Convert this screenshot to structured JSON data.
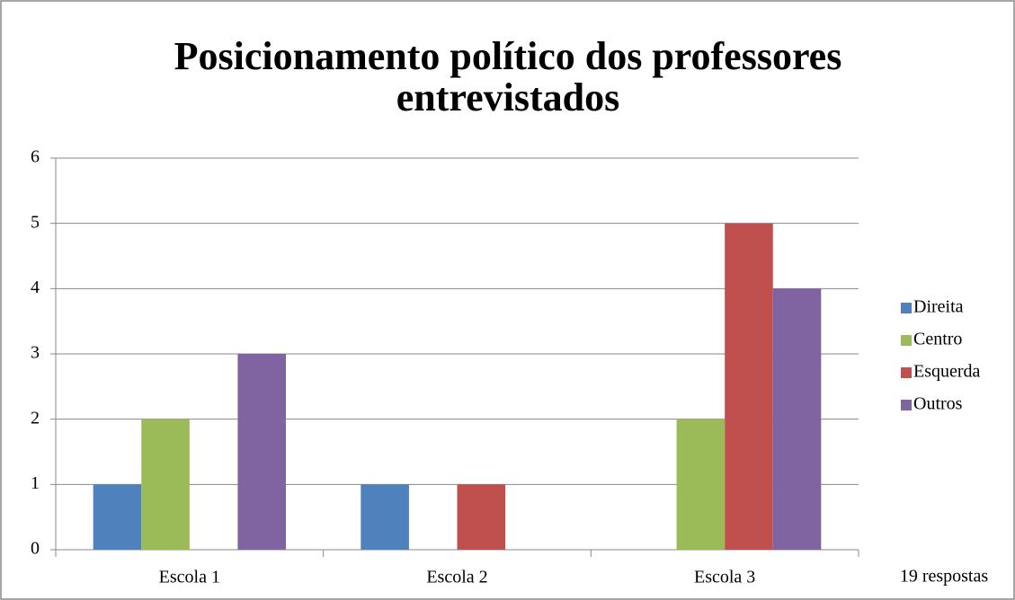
{
  "chart_data": {
    "type": "bar",
    "title": "Posicionamento político dos professores entrevistados",
    "categories": [
      "Escola 1",
      "Escola 2",
      "Escola 3"
    ],
    "series": [
      {
        "name": "Direita",
        "color": "#4f81bd",
        "values": [
          1,
          1,
          0
        ]
      },
      {
        "name": "Centro",
        "color": "#9bbb59",
        "values": [
          2,
          0,
          2
        ]
      },
      {
        "name": "Esquerda",
        "color": "#c0504d",
        "values": [
          0,
          1,
          5
        ]
      },
      {
        "name": "Outros",
        "color": "#8064a2",
        "values": [
          3,
          0,
          4
        ]
      }
    ],
    "ylim": [
      0,
      6
    ],
    "yticks": [
      0,
      1,
      2,
      3,
      4,
      5,
      6
    ],
    "grid": true,
    "legend": "right",
    "annotation": "19 respostas"
  }
}
